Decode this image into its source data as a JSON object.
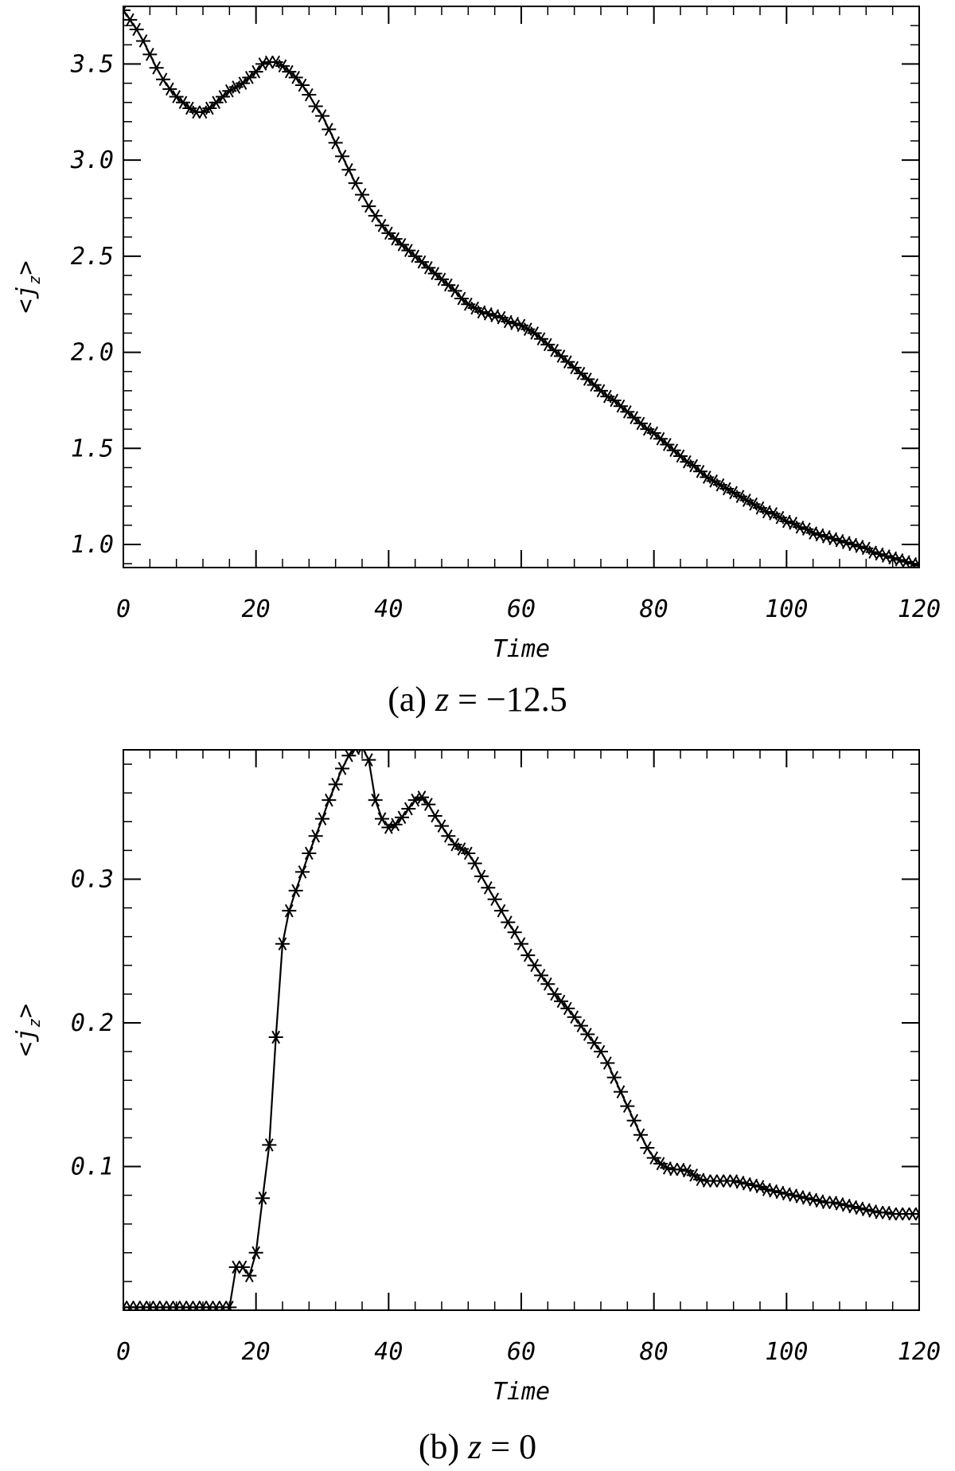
{
  "chart_data": [
    {
      "type": "line",
      "caption_prefix": "(a) ",
      "caption_var": "z",
      "caption_suffix": " = −12.5",
      "xlabel": "Time",
      "ylabel": "<j_z>",
      "ylabel_main": "<j",
      "ylabel_sub": "z",
      "ylabel_end": ">",
      "xlim": [
        0,
        120
      ],
      "ylim": [
        0.88,
        3.8
      ],
      "xticks": [
        0,
        20,
        40,
        60,
        80,
        100,
        120
      ],
      "xtick_labels": [
        "0",
        "20",
        "40",
        "60",
        "80",
        "100",
        "120"
      ],
      "yticks": [
        1.0,
        1.5,
        2.0,
        2.5,
        3.0,
        3.5
      ],
      "ytick_labels": [
        "1.0",
        "1.5",
        "2.0",
        "2.5",
        "3.0",
        "3.5"
      ],
      "marker": "asterisk",
      "x": [
        0,
        1,
        2,
        3,
        4,
        5,
        6,
        7,
        8,
        9,
        10,
        11,
        12,
        13,
        14,
        15,
        16,
        17,
        18,
        19,
        20,
        21,
        22,
        23,
        24,
        25,
        26,
        27,
        28,
        29,
        30,
        31,
        32,
        33,
        34,
        35,
        36,
        37,
        38,
        39,
        40,
        41,
        42,
        43,
        44,
        45,
        46,
        47,
        48,
        49,
        50,
        51,
        52,
        53,
        54,
        55,
        56,
        57,
        58,
        59,
        60,
        61,
        62,
        63,
        64,
        65,
        66,
        67,
        68,
        69,
        70,
        71,
        72,
        73,
        74,
        75,
        76,
        77,
        78,
        79,
        80,
        81,
        82,
        83,
        84,
        85,
        86,
        87,
        88,
        89,
        90,
        91,
        92,
        93,
        94,
        95,
        96,
        97,
        98,
        99,
        100,
        101,
        102,
        103,
        104,
        105,
        106,
        107,
        108,
        109,
        110,
        111,
        112,
        113,
        114,
        115,
        116,
        117,
        118,
        119,
        120
      ],
      "y": [
        3.78,
        3.73,
        3.68,
        3.62,
        3.55,
        3.48,
        3.42,
        3.37,
        3.33,
        3.3,
        3.27,
        3.25,
        3.25,
        3.27,
        3.3,
        3.33,
        3.36,
        3.38,
        3.4,
        3.43,
        3.46,
        3.5,
        3.51,
        3.51,
        3.49,
        3.46,
        3.43,
        3.39,
        3.34,
        3.28,
        3.23,
        3.16,
        3.09,
        3.02,
        2.95,
        2.88,
        2.82,
        2.76,
        2.71,
        2.66,
        2.62,
        2.59,
        2.56,
        2.53,
        2.5,
        2.47,
        2.44,
        2.41,
        2.38,
        2.35,
        2.32,
        2.28,
        2.25,
        2.23,
        2.21,
        2.2,
        2.19,
        2.18,
        2.16,
        2.15,
        2.14,
        2.12,
        2.1,
        2.07,
        2.04,
        2.01,
        1.98,
        1.95,
        1.92,
        1.89,
        1.86,
        1.83,
        1.8,
        1.77,
        1.75,
        1.72,
        1.69,
        1.66,
        1.63,
        1.6,
        1.58,
        1.55,
        1.52,
        1.49,
        1.46,
        1.43,
        1.41,
        1.38,
        1.35,
        1.33,
        1.31,
        1.29,
        1.27,
        1.25,
        1.23,
        1.21,
        1.19,
        1.17,
        1.16,
        1.14,
        1.12,
        1.11,
        1.09,
        1.08,
        1.06,
        1.05,
        1.04,
        1.03,
        1.02,
        1.01,
        1.0,
        0.99,
        0.98,
        0.96,
        0.95,
        0.94,
        0.93,
        0.92,
        0.91,
        0.9,
        0.89
      ]
    },
    {
      "type": "line",
      "caption_prefix": "(b) ",
      "caption_var": "z",
      "caption_suffix": " = 0",
      "xlabel": "Time",
      "ylabel": "<j_z>",
      "ylabel_main": "<j",
      "ylabel_sub": "z",
      "ylabel_end": ">",
      "xlim": [
        0,
        120
      ],
      "ylim": [
        0.0,
        0.39
      ],
      "xticks": [
        0,
        20,
        40,
        60,
        80,
        100,
        120
      ],
      "xtick_labels": [
        "0",
        "20",
        "40",
        "60",
        "80",
        "100",
        "120"
      ],
      "yticks": [
        0.1,
        0.2,
        0.3
      ],
      "ytick_labels": [
        "0.1",
        "0.2",
        "0.3"
      ],
      "marker": "asterisk",
      "x": [
        0,
        1,
        2,
        3,
        4,
        5,
        6,
        7,
        8,
        9,
        10,
        11,
        12,
        13,
        14,
        15,
        16,
        17,
        18,
        19,
        20,
        21,
        22,
        23,
        24,
        25,
        26,
        27,
        28,
        29,
        30,
        31,
        32,
        33,
        34,
        35,
        36,
        37,
        38,
        39,
        40,
        41,
        42,
        43,
        44,
        45,
        46,
        47,
        48,
        49,
        50,
        51,
        52,
        53,
        54,
        55,
        56,
        57,
        58,
        59,
        60,
        61,
        62,
        63,
        64,
        65,
        66,
        67,
        68,
        69,
        70,
        71,
        72,
        73,
        74,
        75,
        76,
        77,
        78,
        79,
        80,
        81,
        82,
        83,
        84,
        85,
        86,
        87,
        88,
        89,
        90,
        91,
        92,
        93,
        94,
        95,
        96,
        97,
        98,
        99,
        100,
        101,
        102,
        103,
        104,
        105,
        106,
        107,
        108,
        109,
        110,
        111,
        112,
        113,
        114,
        115,
        116,
        117,
        118,
        119,
        120
      ],
      "y": [
        0.002,
        0.002,
        0.002,
        0.002,
        0.002,
        0.002,
        0.002,
        0.002,
        0.002,
        0.002,
        0.002,
        0.002,
        0.002,
        0.002,
        0.002,
        0.002,
        0.002,
        0.03,
        0.03,
        0.024,
        0.04,
        0.078,
        0.115,
        0.19,
        0.255,
        0.278,
        0.292,
        0.305,
        0.318,
        0.33,
        0.342,
        0.355,
        0.366,
        0.377,
        0.386,
        0.391,
        0.392,
        0.383,
        0.355,
        0.342,
        0.336,
        0.338,
        0.343,
        0.349,
        0.355,
        0.357,
        0.352,
        0.344,
        0.337,
        0.33,
        0.324,
        0.321,
        0.318,
        0.311,
        0.302,
        0.294,
        0.286,
        0.278,
        0.27,
        0.263,
        0.255,
        0.247,
        0.24,
        0.233,
        0.227,
        0.22,
        0.215,
        0.21,
        0.204,
        0.198,
        0.192,
        0.186,
        0.18,
        0.172,
        0.162,
        0.152,
        0.142,
        0.132,
        0.122,
        0.113,
        0.106,
        0.102,
        0.099,
        0.098,
        0.098,
        0.097,
        0.094,
        0.091,
        0.09,
        0.09,
        0.09,
        0.09,
        0.09,
        0.089,
        0.088,
        0.087,
        0.086,
        0.084,
        0.083,
        0.082,
        0.081,
        0.08,
        0.079,
        0.078,
        0.077,
        0.076,
        0.075,
        0.075,
        0.074,
        0.073,
        0.072,
        0.071,
        0.07,
        0.069,
        0.068,
        0.068,
        0.067,
        0.067,
        0.067,
        0.067,
        0.067
      ]
    }
  ]
}
